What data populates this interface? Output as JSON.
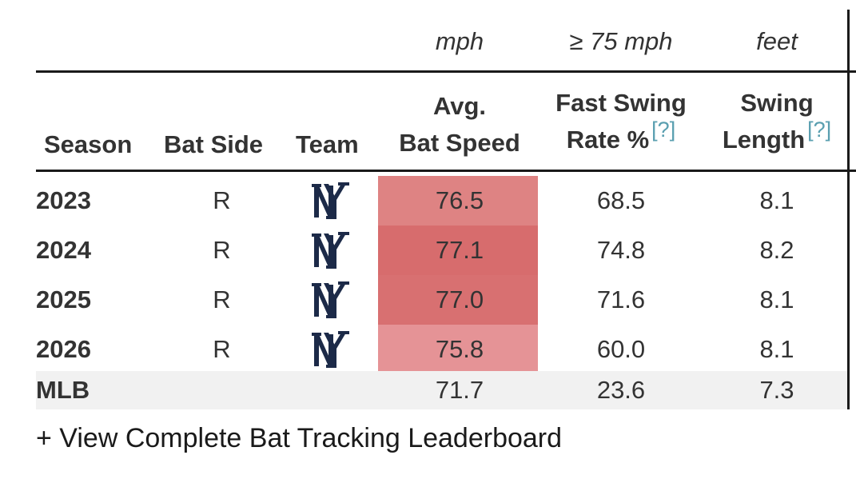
{
  "units": {
    "bat_speed": "mph",
    "fast_swing": "≥ 75 mph",
    "swing_length": "feet"
  },
  "headers": {
    "season": "Season",
    "bat_side": "Bat Side",
    "team": "Team",
    "bat_speed_line1": "Avg.",
    "bat_speed_line2": "Bat Speed",
    "fast_swing_line1": "Fast Swing",
    "fast_swing_line2": "Rate %",
    "swing_length_line1": "Swing",
    "swing_length_line2": "Length",
    "help": "[?]"
  },
  "rows": [
    {
      "season": "2023",
      "bat_side": "R",
      "team_icon": "yankees-logo-icon",
      "bat_speed": "76.5",
      "fast_swing": "68.5",
      "swing_length": "8.1",
      "shade": "#de8383"
    },
    {
      "season": "2024",
      "bat_side": "R",
      "team_icon": "yankees-logo-icon",
      "bat_speed": "77.1",
      "fast_swing": "74.8",
      "swing_length": "8.2",
      "shade": "#d76c6d"
    },
    {
      "season": "2025",
      "bat_side": "R",
      "team_icon": "yankees-logo-icon",
      "bat_speed": "77.0",
      "fast_swing": "71.6",
      "swing_length": "8.1",
      "shade": "#d87071"
    },
    {
      "season": "2026",
      "bat_side": "R",
      "team_icon": "yankees-logo-icon",
      "bat_speed": "75.8",
      "fast_swing": "60.0",
      "swing_length": "8.1",
      "shade": "#e59396"
    }
  ],
  "mlb": {
    "label": "MLB",
    "bat_speed": "71.7",
    "fast_swing": "23.6",
    "swing_length": "7.3"
  },
  "link": {
    "label": "+ View Complete Bat Tracking Leaderboard"
  },
  "colors": {
    "team_navy": "#1c2a48",
    "help_link": "#5a9fb0",
    "mlb_row_bg": "#f1f1f1"
  }
}
